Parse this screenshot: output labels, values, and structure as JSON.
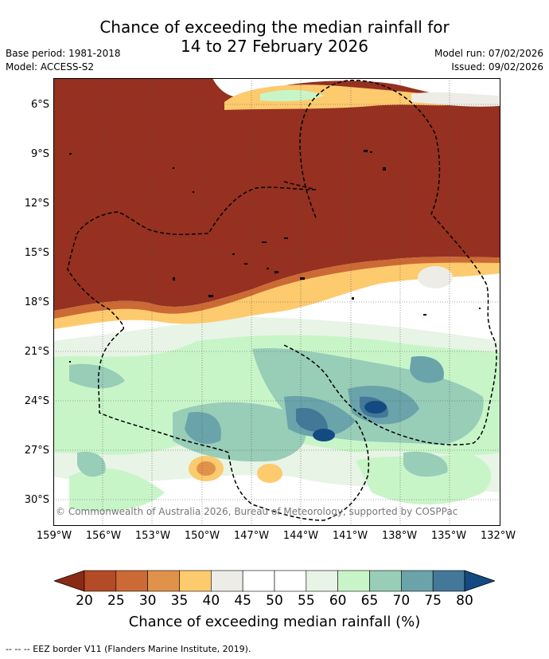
{
  "title_line1": "Chance of exceeding the median rainfall for",
  "title_line2": "14 to 27 February 2026",
  "base_period": "Base period: 1981-2018",
  "model": "Model: ACCESS-S2",
  "model_run": "Model run: 07/02/2026",
  "issued": "Issued: 09/02/2026",
  "credit": "© Commonwealth of Australia 2026, Bureau of Meteorology, supported by COSPPac",
  "lat_labels": [
    "6°S",
    "9°S",
    "12°S",
    "15°S",
    "18°S",
    "21°S",
    "24°S",
    "27°S",
    "30°S"
  ],
  "lon_labels": [
    "159°W",
    "156°W",
    "153°W",
    "150°W",
    "147°W",
    "144°W",
    "141°W",
    "138°W",
    "135°W",
    "132°W"
  ],
  "colorbar": {
    "title": "Chance of exceeding median rainfall (%)",
    "labels": [
      "20",
      "25",
      "30",
      "35",
      "40",
      "45",
      "50",
      "55",
      "60",
      "65",
      "70",
      "75",
      "80"
    ],
    "colors": [
      "#8b2a14",
      "#b34b26",
      "#cc6a35",
      "#e0924a",
      "#fdca6e",
      "#eeece6",
      "#ffffff",
      "#ffffff",
      "#e8f4e6",
      "#c8f5c8",
      "#98cdb8",
      "#6aa3aa",
      "#437898",
      "#134a82"
    ]
  },
  "legend_text": "-- -- -- EEZ border V11 (Flanders Marine Institute, 2019)."
}
